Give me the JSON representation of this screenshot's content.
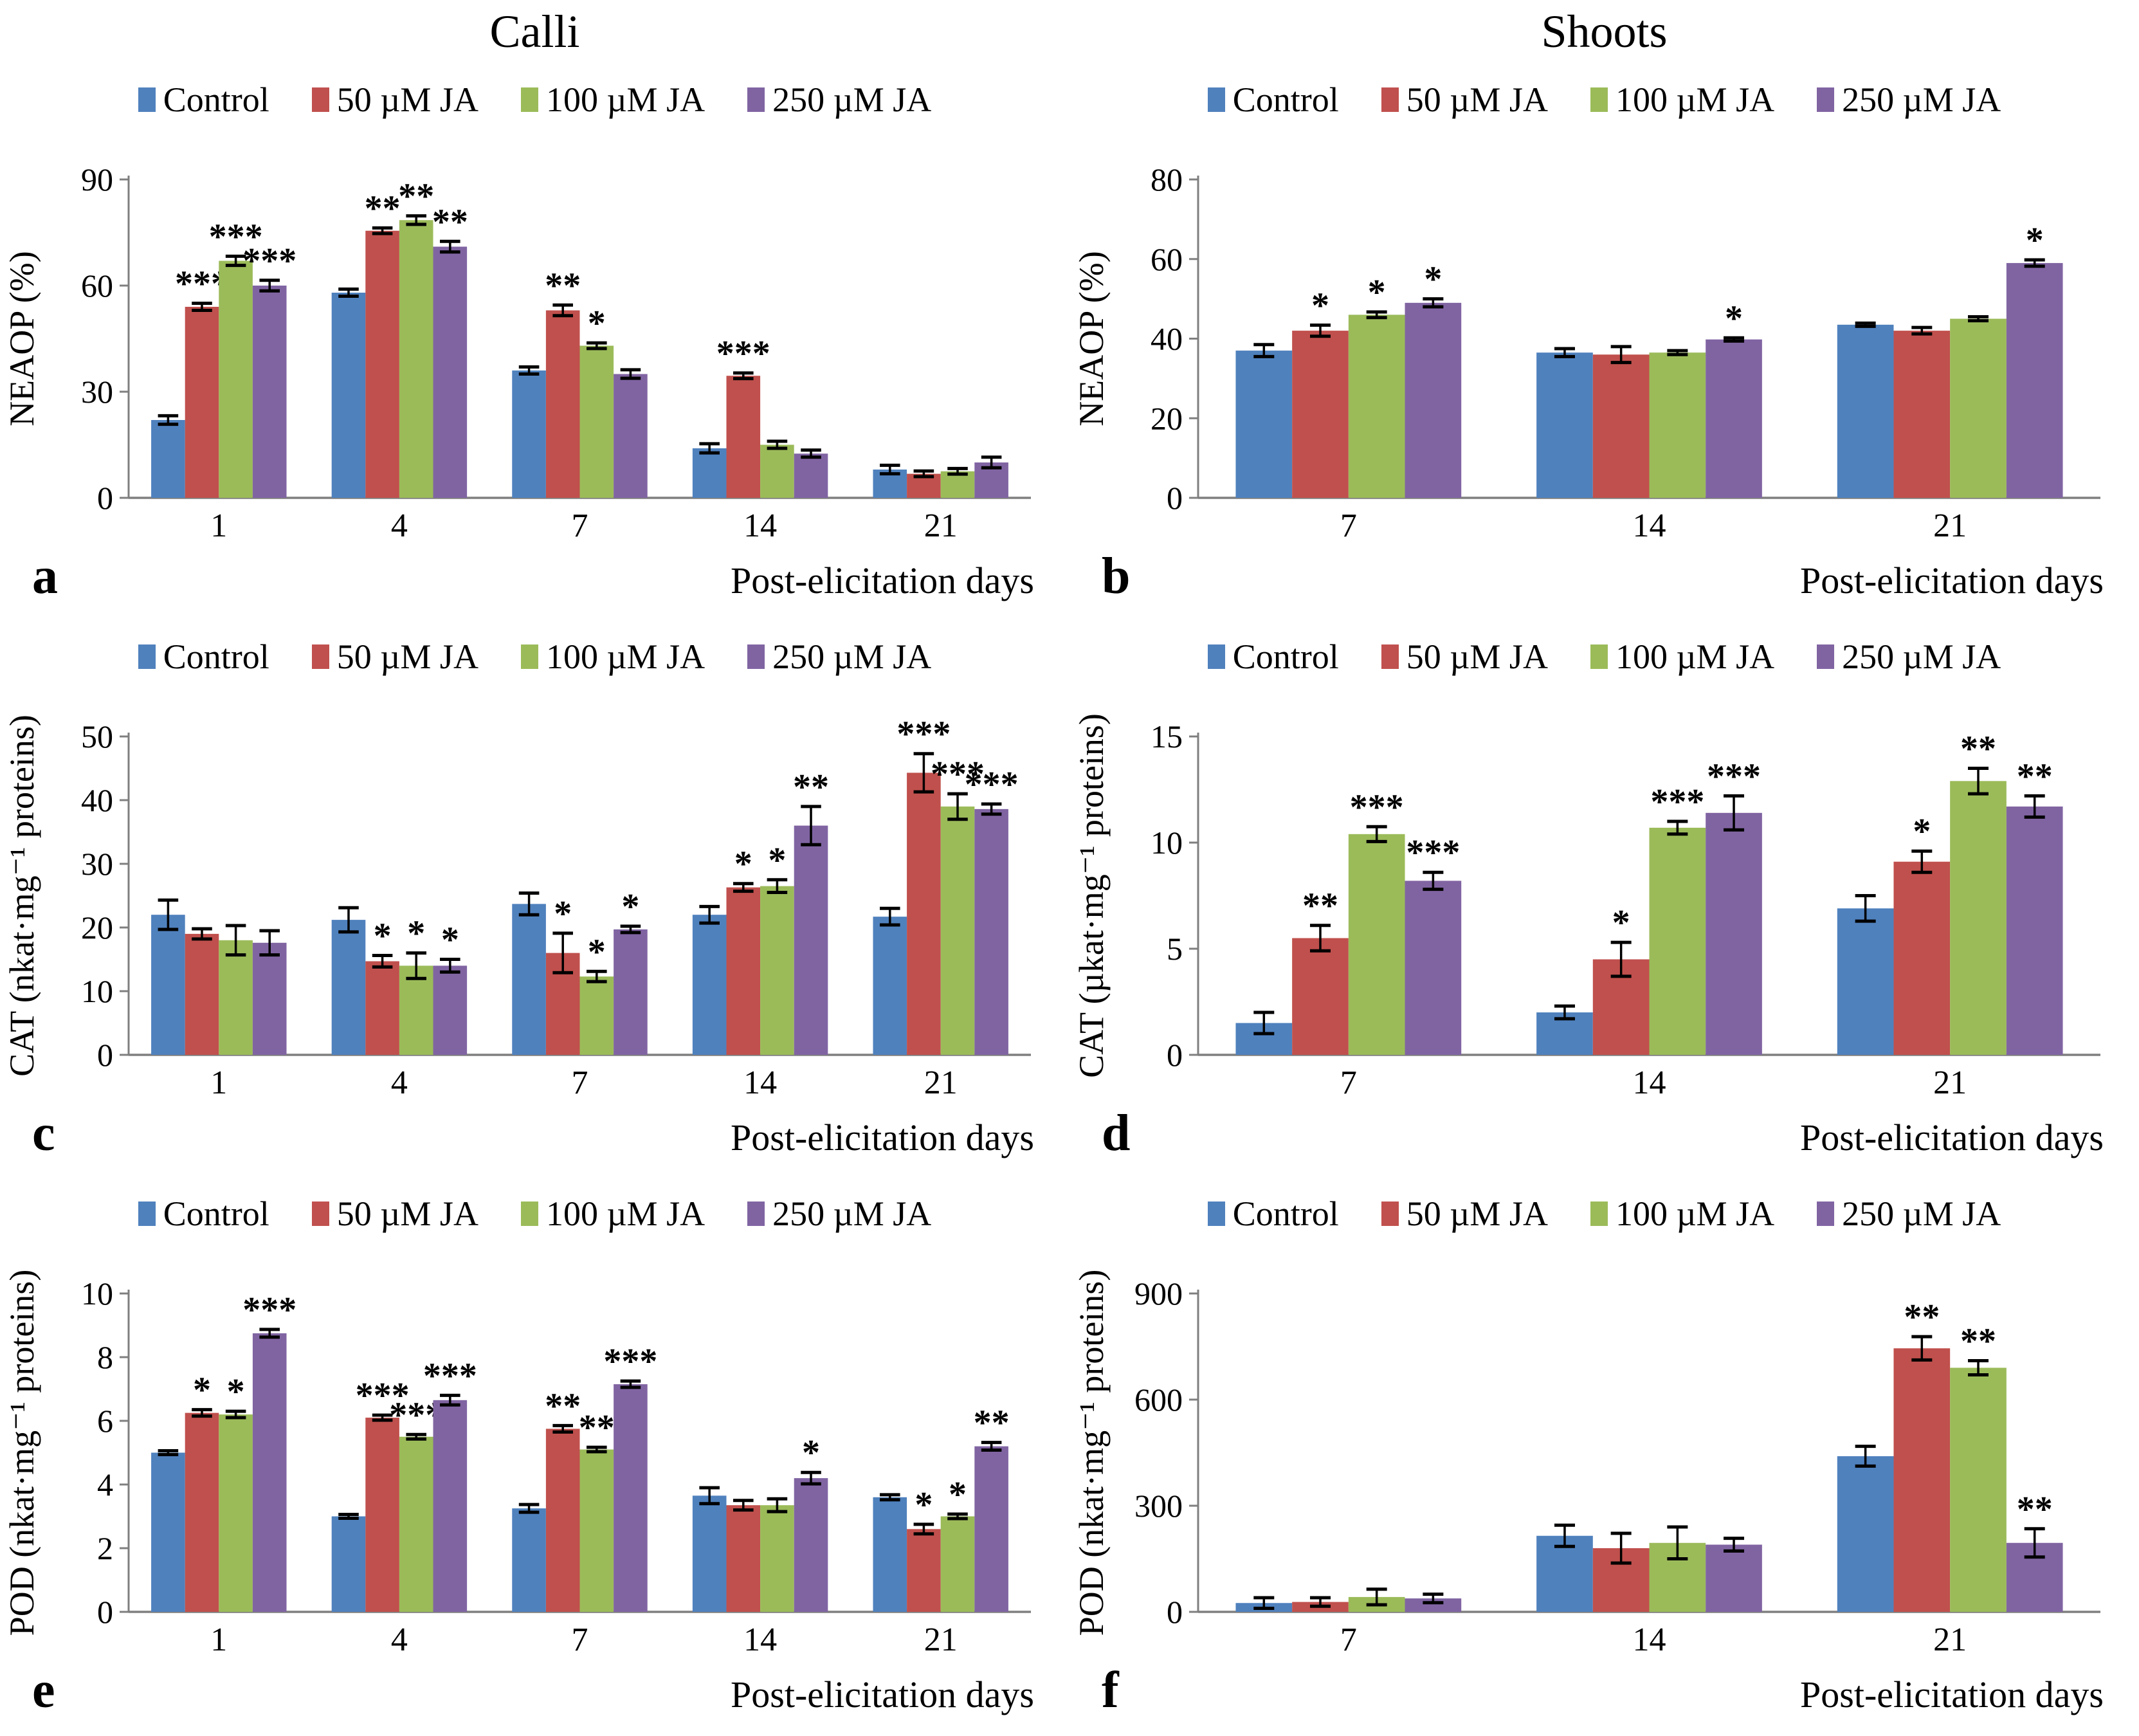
{
  "figure": {
    "column_titles": [
      "Calli",
      "Shoots"
    ],
    "xlabel": "Post-elicitation days",
    "legend_labels": [
      "Control",
      "50 µM JA",
      "100 µM JA",
      "250 µM JA"
    ],
    "series_colors": [
      "#4F81BD",
      "#C0504D",
      "#9BBB59",
      "#8064A2"
    ],
    "axis_color": "#7F7F7F",
    "error_bar_color": "#000000",
    "sig_symbols_meaning": [
      "*",
      "**",
      "***"
    ]
  },
  "chart_data": [
    {
      "panel_letter": "a",
      "column": "Calli",
      "type": "bar",
      "ylabel": "NEAOP (%)",
      "xlabel": "Post-elicitation days",
      "ylim": [
        0,
        90
      ],
      "yticks": [
        0,
        30,
        60,
        90
      ],
      "categories": [
        "1",
        "4",
        "7",
        "14",
        "21"
      ],
      "legend_position": "top",
      "grid": false,
      "series": [
        {
          "name": "Control",
          "values": [
            22,
            58,
            36,
            14,
            8
          ],
          "errors": [
            1.2,
            1.0,
            1.0,
            1.3,
            1.2
          ],
          "sig": [
            "",
            "",
            "",
            "",
            ""
          ]
        },
        {
          "name": "50 µM JA",
          "values": [
            54,
            75.5,
            53,
            34.5,
            6.8
          ],
          "errors": [
            1.0,
            0.8,
            1.5,
            0.8,
            0.8
          ],
          "sig": [
            "***",
            "**",
            "**",
            "***",
            ""
          ]
        },
        {
          "name": "100 µM JA",
          "values": [
            67,
            78.5,
            43,
            15,
            7.5
          ],
          "errors": [
            1.3,
            1.2,
            0.8,
            1.0,
            0.8
          ],
          "sig": [
            "***",
            "**",
            "*",
            "",
            ""
          ]
        },
        {
          "name": "250 µM JA",
          "values": [
            60,
            71,
            35,
            12.5,
            10
          ],
          "errors": [
            1.5,
            1.5,
            1.2,
            1.0,
            1.5
          ],
          "sig": [
            "***",
            "**",
            "",
            "",
            ""
          ]
        }
      ]
    },
    {
      "panel_letter": "b",
      "column": "Shoots",
      "type": "bar",
      "ylabel": "NEAOP (%)",
      "xlabel": "Post-elicitation days",
      "ylim": [
        0,
        80
      ],
      "yticks": [
        0,
        20,
        40,
        60,
        80
      ],
      "categories": [
        "7",
        "14",
        "21"
      ],
      "legend_position": "top",
      "grid": false,
      "series": [
        {
          "name": "Control",
          "values": [
            37,
            36.5,
            43.5
          ],
          "errors": [
            1.5,
            1.0,
            0.4
          ],
          "sig": [
            "",
            "",
            ""
          ]
        },
        {
          "name": "50 µM JA",
          "values": [
            42,
            36,
            42
          ],
          "errors": [
            1.4,
            2.0,
            0.8
          ],
          "sig": [
            "*",
            "",
            ""
          ]
        },
        {
          "name": "100 µM JA",
          "values": [
            46,
            36.5,
            45
          ],
          "errors": [
            0.7,
            0.5,
            0.5
          ],
          "sig": [
            "*",
            "",
            ""
          ]
        },
        {
          "name": "250 µM JA",
          "values": [
            49,
            39.8,
            59
          ],
          "errors": [
            1.0,
            0.4,
            0.8
          ],
          "sig": [
            "*",
            "*",
            "*"
          ]
        }
      ]
    },
    {
      "panel_letter": "c",
      "column": "Calli",
      "type": "bar",
      "ylabel": "CAT (nkat·mg⁻¹ proteins)",
      "xlabel": "Post-elicitation days",
      "ylim": [
        0,
        50
      ],
      "yticks": [
        0,
        10,
        20,
        30,
        40,
        50
      ],
      "categories": [
        "1",
        "4",
        "7",
        "14",
        "21"
      ],
      "legend_position": "top",
      "grid": false,
      "series": [
        {
          "name": "Control",
          "values": [
            22,
            21.2,
            23.7,
            22,
            21.7
          ],
          "errors": [
            2.3,
            1.9,
            1.7,
            1.3,
            1.3
          ],
          "sig": [
            "",
            "",
            "",
            "",
            ""
          ]
        },
        {
          "name": "50 µM JA",
          "values": [
            19,
            14.7,
            16,
            26.3,
            44.3
          ],
          "errors": [
            0.8,
            0.9,
            3.1,
            0.6,
            3.0
          ],
          "sig": [
            "",
            "*",
            "*",
            "*",
            "***"
          ]
        },
        {
          "name": "100 µM JA",
          "values": [
            18,
            14,
            12.3,
            26.5,
            39
          ],
          "errors": [
            2.3,
            2.0,
            0.8,
            1.0,
            2.0
          ],
          "sig": [
            "",
            "*",
            "*",
            "*",
            "***"
          ]
        },
        {
          "name": "250 µM JA",
          "values": [
            17.6,
            14,
            19.7,
            36,
            38.6
          ],
          "errors": [
            1.9,
            1.0,
            0.5,
            3.0,
            0.8
          ],
          "sig": [
            "",
            "*",
            "*",
            "**",
            "***"
          ]
        }
      ]
    },
    {
      "panel_letter": "d",
      "column": "Shoots",
      "type": "bar",
      "ylabel": "CAT (µkat·mg⁻¹ proteins)",
      "xlabel": "Post-elicitation days",
      "ylim": [
        0,
        15
      ],
      "yticks": [
        0,
        5,
        10,
        15
      ],
      "categories": [
        "7",
        "14",
        "21"
      ],
      "legend_position": "top",
      "grid": false,
      "series": [
        {
          "name": "Control",
          "values": [
            1.5,
            2.0,
            6.9
          ],
          "errors": [
            0.5,
            0.3,
            0.6
          ],
          "sig": [
            "",
            "",
            ""
          ]
        },
        {
          "name": "50 µM JA",
          "values": [
            5.5,
            4.5,
            9.1
          ],
          "errors": [
            0.6,
            0.8,
            0.5
          ],
          "sig": [
            "**",
            "*",
            "*"
          ]
        },
        {
          "name": "100 µM JA",
          "values": [
            10.4,
            10.7,
            12.9
          ],
          "errors": [
            0.35,
            0.3,
            0.6
          ],
          "sig": [
            "***",
            "***",
            "**"
          ]
        },
        {
          "name": "250 µM JA",
          "values": [
            8.2,
            11.4,
            11.7
          ],
          "errors": [
            0.4,
            0.8,
            0.5
          ],
          "sig": [
            "***",
            "***",
            "**"
          ]
        }
      ]
    },
    {
      "panel_letter": "e",
      "column": "Calli",
      "type": "bar",
      "ylabel": "POD (nkat·mg⁻¹ proteins)",
      "xlabel": "Post-elicitation days",
      "ylim": [
        0,
        10
      ],
      "yticks": [
        0,
        2,
        4,
        6,
        8,
        10
      ],
      "categories": [
        "1",
        "4",
        "7",
        "14",
        "21"
      ],
      "legend_position": "top",
      "grid": false,
      "series": [
        {
          "name": "Control",
          "values": [
            5.0,
            3.0,
            3.25,
            3.65,
            3.6
          ],
          "errors": [
            0.06,
            0.06,
            0.12,
            0.25,
            0.08
          ],
          "sig": [
            "",
            "",
            "",
            "",
            ""
          ]
        },
        {
          "name": "50 µM JA",
          "values": [
            6.25,
            6.1,
            5.75,
            3.35,
            2.6
          ],
          "errors": [
            0.1,
            0.08,
            0.1,
            0.15,
            0.15
          ],
          "sig": [
            "*",
            "***",
            "**",
            "",
            "*"
          ]
        },
        {
          "name": "100 µM JA",
          "values": [
            6.2,
            5.5,
            5.1,
            3.35,
            3.0
          ],
          "errors": [
            0.1,
            0.07,
            0.07,
            0.2,
            0.07
          ],
          "sig": [
            "*",
            "***",
            "**",
            "",
            "*"
          ]
        },
        {
          "name": "250 µM JA",
          "values": [
            8.75,
            6.65,
            7.15,
            4.2,
            5.2
          ],
          "errors": [
            0.12,
            0.15,
            0.1,
            0.18,
            0.12
          ],
          "sig": [
            "***",
            "***",
            "***",
            "*",
            "**"
          ]
        }
      ]
    },
    {
      "panel_letter": "f",
      "column": "Shoots",
      "type": "bar",
      "ylabel": "POD (nkat·mg⁻¹ proteins)",
      "xlabel": "Post-elicitation days",
      "ylim": [
        0,
        900
      ],
      "yticks": [
        0,
        300,
        600,
        900
      ],
      "categories": [
        "7",
        "14",
        "21"
      ],
      "legend_position": "top",
      "grid": false,
      "series": [
        {
          "name": "Control",
          "values": [
            25,
            215,
            440
          ],
          "errors": [
            15,
            30,
            28
          ],
          "sig": [
            "",
            "",
            ""
          ]
        },
        {
          "name": "50 µM JA",
          "values": [
            28,
            180,
            745
          ],
          "errors": [
            12,
            42,
            33
          ],
          "sig": [
            "",
            "",
            "**"
          ]
        },
        {
          "name": "100 µM JA",
          "values": [
            42,
            195,
            690
          ],
          "errors": [
            22,
            45,
            20
          ],
          "sig": [
            "",
            "",
            "**"
          ]
        },
        {
          "name": "250 µM JA",
          "values": [
            38,
            190,
            195
          ],
          "errors": [
            12,
            18,
            40
          ],
          "sig": [
            "",
            "",
            "**"
          ]
        }
      ]
    }
  ]
}
